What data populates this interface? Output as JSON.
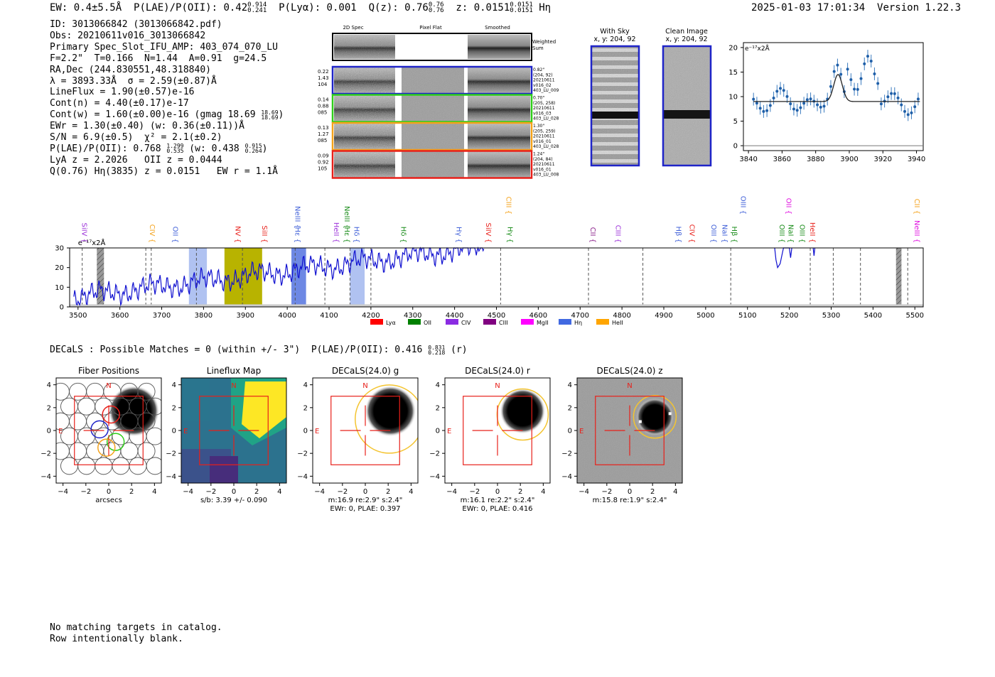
{
  "header": {
    "ew": "EW: 0.4±5.5Å",
    "plae_label": "P(LAE)/P(OII): 0.42",
    "plae_hi": "0.914",
    "plae_lo": "0.241",
    "plya": "P(Lyα): 0.001",
    "qz_label": "Q(z): 0.76",
    "qz_hi": "0.76",
    "qz_lo": "0.76",
    "z_label": "z: 0.0151",
    "z_hi": "0.0151",
    "z_lo": "0.0151",
    "line_name": "Hη",
    "timestamp": "2025-01-03 17:01:34",
    "version": "Version 1.22.3"
  },
  "info": {
    "id": "ID: 3013066842 (3013066842.pdf)",
    "obs": "Obs: 20210611v016_3013066842",
    "primary": "Primary Spec_Slot_IFU_AMP: 403_074_070_LU",
    "fwhm": "F=2.2\"  T=0.166  N=1.44  A=0.91  g=24.5",
    "radec": "RA,Dec (244.830551,48.318840)",
    "lambda": "λ = 3893.33Å  σ = 2.59(±0.87)Å",
    "lineflux": "LineFlux = 1.90(±0.57)e-16",
    "contn": "Cont(n) = 4.40(±0.17)e-17",
    "contw": "Cont(w) = 1.60(±0.00)e-16 (gmag 18.69",
    "contw_hi": "18.69",
    "contw_lo": "18.69",
    "ewr": "EWr = 1.30(±0.40) (w: 0.36(±0.11))Å",
    "sn": "S/N = 6.9(±0.5)  χ² = 2.1(±0.2)",
    "plae": "P(LAE)/P(OII): 0.768",
    "plae_hi": "1.299",
    "plae_lo": "0.535",
    "plae_w": "(w: 0.438",
    "plae_w_hi": "0.915",
    "plae_w_lo": "0.264",
    "lya": "LyA z = 2.2026   OII z = 0.0444",
    "q": "Q(0.76) Hη(3835) z = 0.0151   EW r = 1.1Å"
  },
  "cutouts": {
    "col_2d": "2D Spec",
    "col_flat": "Pixel Flat",
    "col_smooth": "Smoothed",
    "weighted": "Weighted",
    "sum": "Sum",
    "rows": [
      {
        "left1": "0.22",
        "left2": "1.43",
        "left3": "104",
        "r1": "0.82\"",
        "r2": "(204, 92)",
        "r3": "20210611",
        "r4": "v016_02",
        "r5": "403_LU_009",
        "color": "#1f24c8"
      },
      {
        "left1": "0.14",
        "left2": "0.88",
        "left3": "085",
        "r1": "0.70\"",
        "r2": "(205, 258)",
        "r3": "20210611",
        "r4": "v016_03",
        "r5": "403_LU_028",
        "color": "#2fce1a"
      },
      {
        "left1": "0.13",
        "left2": "1.27",
        "left3": "085",
        "r1": "1.30\"",
        "r2": "(205, 259)",
        "r3": "20210611",
        "r4": "v016_01",
        "r5": "403_LU_028",
        "color": "#f4a21a"
      },
      {
        "left1": "0.09",
        "left2": "0.92",
        "left3": "105",
        "r1": "1.24\"",
        "r2": "(204, 84)",
        "r3": "20210611",
        "r4": "v016_01",
        "r5": "403_LU_008",
        "color": "#e8201a"
      }
    ]
  },
  "sky": {
    "with_sky": "With Sky",
    "with_sky_xy": "x, y: 204, 92",
    "clean": "Clean Image",
    "clean_xy": "x, y: 204, 92"
  },
  "zoom_plot": {
    "unit": "e⁻¹⁷x2Å",
    "xticks": [
      "3840",
      "3860",
      "3880",
      "3900",
      "3920",
      "3940"
    ],
    "yticks": [
      "0",
      "5",
      "10",
      "15",
      "20"
    ]
  },
  "spectrum": {
    "unit": "e⁻¹⁷x2Å",
    "xticks": [
      "3500",
      "3600",
      "3700",
      "3800",
      "3900",
      "4000",
      "4100",
      "4200",
      "4300",
      "4400",
      "4500",
      "4600",
      "4700",
      "4800",
      "4900",
      "5000",
      "5100",
      "5200",
      "5300",
      "5400",
      "5500"
    ],
    "yticks": [
      "0",
      "10",
      "20",
      "30"
    ],
    "line_labels": [
      {
        "t": "SiIV",
        "w": 3510,
        "row": 2,
        "c": "#9b30d9"
      },
      {
        "t": "CIV",
        "w": 3672,
        "row": 2,
        "c": "#f4a21a"
      },
      {
        "t": "OII",
        "w": 3727,
        "row": 2,
        "c": "#4060d8"
      },
      {
        "t": "NV",
        "w": 3877,
        "row": 2,
        "c": "#e8201a"
      },
      {
        "t": "SiII",
        "w": 3940,
        "row": 2,
        "c": "#e8201a"
      },
      {
        "t": "NeIII",
        "w": 4019,
        "row": 0,
        "c": "#4060d8"
      },
      {
        "t": "Hε",
        "w": 4019,
        "row": 2,
        "c": "#4060d8"
      },
      {
        "t": "HeII",
        "w": 4112,
        "row": 2,
        "c": "#9b30d9"
      },
      {
        "t": "NeIII",
        "w": 4137,
        "row": 0,
        "c": "#1a8c1a"
      },
      {
        "t": "Hε",
        "w": 4137,
        "row": 2,
        "c": "#1a8c1a"
      },
      {
        "t": "Hδ",
        "w": 4160,
        "row": 2,
        "c": "#4060d8"
      },
      {
        "t": "Hδ",
        "w": 4272,
        "row": 2,
        "c": "#1a8c1a"
      },
      {
        "t": "Hγ",
        "w": 4405,
        "row": 2,
        "c": "#4060d8"
      },
      {
        "t": "SiIV",
        "w": 4475,
        "row": 2,
        "c": "#e8201a"
      },
      {
        "t": "CIII",
        "w": 4524,
        "row": 1,
        "c": "#f4a21a"
      },
      {
        "t": "Hγ",
        "w": 4527,
        "row": 2,
        "c": "#1a8c1a"
      },
      {
        "t": "CII",
        "w": 4725,
        "row": 2,
        "c": "#8a1f8a"
      },
      {
        "t": "CIII",
        "w": 4785,
        "row": 2,
        "c": "#9b30d9"
      },
      {
        "t": "Hβ",
        "w": 4930,
        "row": 2,
        "c": "#4060d8"
      },
      {
        "t": "CIV",
        "w": 4962,
        "row": 2,
        "c": "#e8201a"
      },
      {
        "t": "OIII",
        "w": 5014,
        "row": 2,
        "c": "#4060d8"
      },
      {
        "t": "NaI",
        "w": 5040,
        "row": 2,
        "c": "#4060d8"
      },
      {
        "t": "Hβ",
        "w": 5063,
        "row": 2,
        "c": "#1a8c1a"
      },
      {
        "t": "OIII",
        "w": 5084,
        "row": 1,
        "c": "#4060d8"
      },
      {
        "t": "OIII",
        "w": 5177,
        "row": 2,
        "c": "#1a8c1a"
      },
      {
        "t": "OII",
        "w": 5193,
        "row": 1,
        "c": "#e010e0"
      },
      {
        "t": "NaI",
        "w": 5198,
        "row": 2,
        "c": "#1a8c1a"
      },
      {
        "t": "OIII",
        "w": 5225,
        "row": 2,
        "c": "#1a8c1a"
      },
      {
        "t": "HeII",
        "w": 5250,
        "row": 2,
        "c": "#e8201a"
      },
      {
        "t": "CII",
        "w": 5500,
        "row": 1,
        "c": "#f4a21a"
      },
      {
        "t": "NeIII",
        "w": 5500,
        "row": 2,
        "c": "#e010e0"
      }
    ],
    "legend": [
      {
        "t": "Lyα",
        "c": "#ff0000"
      },
      {
        "t": "OII",
        "c": "#008000"
      },
      {
        "t": "CIV",
        "c": "#8a2be2"
      },
      {
        "t": "CIII",
        "c": "#800080"
      },
      {
        "t": "MgII",
        "c": "#ff00ff"
      },
      {
        "t": "Hη",
        "c": "#4169e1"
      },
      {
        "t": "HeII",
        "c": "#ffa500"
      }
    ]
  },
  "decals_line": {
    "text": "DECaLS : Possible Matches = 0 (within +/- 3\")  P(LAE)/P(OII): 0.416",
    "hi": "0.831",
    "lo": "0.218",
    "band": "(r)"
  },
  "panels": [
    {
      "title": "Fiber Positions",
      "cap1": "arcsecs",
      "cap2": ""
    },
    {
      "title": "Lineflux Map",
      "cap1": "s/b: 3.39 +/- 0.090",
      "cap2": ""
    },
    {
      "title": "DECaLS(24.0) g",
      "cap1": "m:16.9   re:2.9\"   s:2.4\"",
      "cap2": "EWr: 0, PLAE: 0.397"
    },
    {
      "title": "DECaLS(24.0) r",
      "cap1": "m:16.1   re:2.2\"   s:2.4\"",
      "cap2": "EWr: 0, PLAE: 0.416"
    },
    {
      "title": "DECaLS(24.0) z",
      "cap1": "m:15.8   re:1.9\"   s:2.4\"",
      "cap2": ""
    }
  ],
  "panel_ticks": [
    "−4",
    "−2",
    "0",
    "2",
    "4"
  ],
  "panel_n": "N",
  "panel_e": "E",
  "footer": {
    "line1": "No matching targets in catalog.",
    "line2": "Row intentionally blank."
  }
}
